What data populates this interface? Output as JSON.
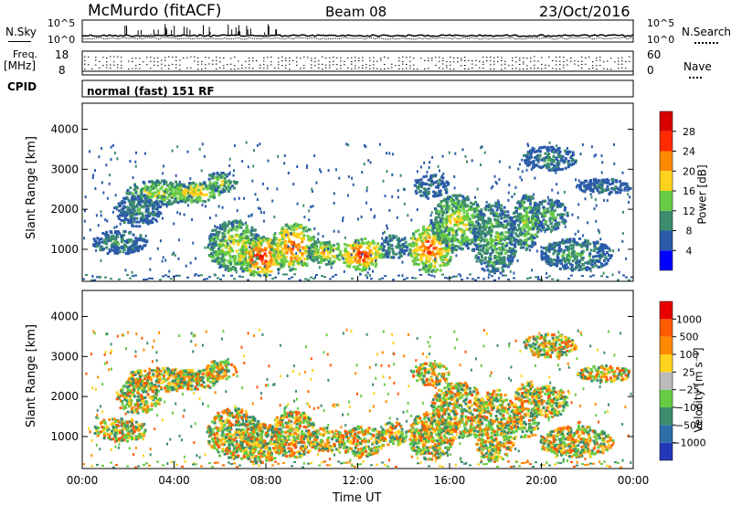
{
  "header": {
    "station": "McMurdo (fitACF)",
    "beam": "Beam 08",
    "date": "23/Oct/2016"
  },
  "top_panel": {
    "left_label": "N.Sky",
    "right_label": "N.Search",
    "left_ticks": [
      "10^5",
      "10^0"
    ],
    "right_ticks": [
      "10^5",
      "10^0"
    ]
  },
  "freq_panel": {
    "left_label_1": "Freq.",
    "left_label_2": "[MHz]",
    "right_label": "Nave",
    "left_ticks": [
      "18",
      "8"
    ],
    "right_ticks": [
      "60",
      "0"
    ]
  },
  "cpid": {
    "label": "CPID",
    "value": "normal (fast) 151 RF"
  },
  "chart_data": [
    {
      "type": "heatmap",
      "name": "power",
      "ylabel": "Slant Range [km]",
      "yticks": [
        "1000",
        "2000",
        "3000",
        "4000"
      ],
      "ylim": [
        200,
        4650
      ],
      "colorbar_label": "Power [dB]",
      "colorbar_ticks": [
        "28",
        "24",
        "20",
        "16",
        "12",
        "8",
        "4"
      ],
      "colorbar_colors": [
        "#0000ff",
        "#2a5aa8",
        "#3c8c6e",
        "#66cc44",
        "#ffd21e",
        "#ff8a00",
        "#ff2a00",
        "#d80000"
      ]
    },
    {
      "type": "heatmap",
      "name": "velocity",
      "ylabel": "Slant Range [km]",
      "yticks": [
        "1000",
        "2000",
        "3000",
        "4000"
      ],
      "ylim": [
        200,
        4650
      ],
      "colorbar_label": "Velocity [m s⁻¹]",
      "colorbar_ticks": [
        "1000",
        "500",
        "100",
        "25",
        "−25",
        "−100",
        "−500",
        "−1000"
      ],
      "colorbar_colors": [
        "#2338b8",
        "#2f6ea8",
        "#3c8c6e",
        "#66cc44",
        "#bbbbbb",
        "#ffd21e",
        "#ff8a00",
        "#ff5a00",
        "#e80000"
      ]
    }
  ],
  "x_axis": {
    "label": "Time UT",
    "ticks": [
      "00:00",
      "04:00",
      "08:00",
      "12:00",
      "16:00",
      "20:00",
      "00:00"
    ]
  }
}
